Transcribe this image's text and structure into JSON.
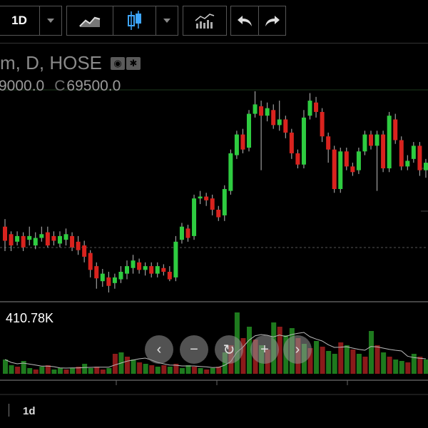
{
  "toolbar": {
    "interval": "1D",
    "icons": {
      "interval_menu": "chevron-down-icon",
      "compare": "line-chart-icon",
      "chart_type": "candlestick-icon",
      "chart_type_menu": "chevron-down-icon",
      "indicators": "indicators-icon",
      "undo": "undo-icon",
      "redo": "redo-icon"
    }
  },
  "legend": {
    "symbol_text": "m, D, HOSE",
    "ohlc_partial": "9000.0",
    "close_label": "C",
    "close_value": "69500.0",
    "icons": [
      "eye-icon",
      "settings-icon"
    ]
  },
  "volume": {
    "value": "410.78K"
  },
  "time_axis": {
    "interval_label": "1d"
  },
  "nav_buttons": [
    {
      "name": "scroll-left-button",
      "glyph": "‹"
    },
    {
      "name": "zoom-out-button",
      "glyph": "−"
    },
    {
      "name": "reset-button",
      "glyph": "↻"
    },
    {
      "name": "zoom-in-button",
      "glyph": "+"
    },
    {
      "name": "scroll-right-button",
      "glyph": "›"
    }
  ],
  "colors": {
    "up": "#2ecc40",
    "down": "#d9231e",
    "up_volume": "#1e7a1e",
    "down_volume": "#8b1a1a"
  },
  "chart_data": {
    "type": "candlestick",
    "candles": [
      [
        0,
        [
          330,
          345,
          322,
          356
        ]
      ],
      [
        1,
        [
          338,
          350,
          335,
          356
        ]
      ],
      [
        2,
        [
          346,
          340,
          335,
          350
        ]
      ],
      [
        3,
        [
          340,
          352,
          336,
          356
        ]
      ],
      [
        4,
        [
          344,
          340,
          330,
          350
        ]
      ],
      [
        5,
        [
          350,
          342,
          336,
          354
        ]
      ],
      [
        6,
        [
          342,
          338,
          330,
          346
        ]
      ],
      [
        7,
        [
          336,
          350,
          330,
          352
        ]
      ],
      [
        8,
        [
          340,
          345,
          335,
          350
        ]
      ],
      [
        9,
        [
          348,
          340,
          335,
          352
        ]
      ],
      [
        10,
        [
          344,
          338,
          332,
          350
        ]
      ],
      [
        11,
        [
          340,
          352,
          336,
          356
        ]
      ],
      [
        12,
        [
          346,
          355,
          340,
          360
        ]
      ],
      [
        13,
        [
          350,
          362,
          345,
          368
        ]
      ],
      [
        14,
        [
          358,
          376,
          355,
          384
        ]
      ],
      [
        15,
        [
          372,
          385,
          368,
          396
        ]
      ],
      [
        16,
        [
          388,
          380,
          375,
          394
        ]
      ],
      [
        17,
        [
          384,
          393,
          378,
          400
        ]
      ],
      [
        18,
        [
          390,
          384,
          380,
          396
        ]
      ],
      [
        19,
        [
          386,
          378,
          372,
          390
        ]
      ],
      [
        20,
        [
          380,
          372,
          366,
          386
        ]
      ],
      [
        21,
        [
          374,
          366,
          360,
          380
        ]
      ],
      [
        22,
        [
          368,
          376,
          364,
          380
        ]
      ],
      [
        23,
        [
          376,
          372,
          368,
          382
        ]
      ],
      [
        24,
        [
          372,
          380,
          368,
          384
        ]
      ],
      [
        25,
        [
          380,
          372,
          368,
          384
        ]
      ],
      [
        26,
        [
          374,
          378,
          370,
          382
        ]
      ],
      [
        27,
        [
          378,
          386,
          372,
          388
        ]
      ],
      [
        28,
        [
          384,
          346,
          340,
          388
        ]
      ],
      [
        29,
        [
          344,
          330,
          326,
          348
        ]
      ],
      [
        30,
        [
          332,
          342,
          328,
          346
        ]
      ],
      [
        31,
        [
          340,
          300,
          296,
          344
        ]
      ],
      [
        32,
        [
          300,
          298,
          292,
          306
        ]
      ],
      [
        33,
        [
          298,
          302,
          294,
          308
        ]
      ],
      [
        34,
        [
          300,
          312,
          296,
          318
        ]
      ],
      [
        35,
        [
          312,
          320,
          308,
          324
        ]
      ],
      [
        36,
        [
          318,
          290,
          286,
          324
        ]
      ],
      [
        37,
        [
          292,
          252,
          248,
          296
        ]
      ],
      [
        38,
        [
          254,
          232,
          228,
          258
        ]
      ],
      [
        39,
        [
          232,
          248,
          226,
          252
        ]
      ],
      [
        40,
        [
          246,
          210,
          206,
          250
        ]
      ],
      [
        41,
        [
          210,
          200,
          186,
          214
        ]
      ],
      [
        42,
        [
          202,
          212,
          196,
          270
        ]
      ],
      [
        43,
        [
          212,
          204,
          198,
          218
        ]
      ],
      [
        44,
        [
          206,
          222,
          200,
          226
        ]
      ],
      [
        45,
        [
          222,
          216,
          196,
          228
        ]
      ],
      [
        46,
        [
          216,
          230,
          212,
          236
        ]
      ],
      [
        47,
        [
          230,
          252,
          226,
          258
        ]
      ],
      [
        48,
        [
          252,
          264,
          248,
          268
        ]
      ],
      [
        49,
        [
          264,
          214,
          206,
          268
        ]
      ],
      [
        50,
        [
          212,
          196,
          188,
          216
        ]
      ],
      [
        51,
        [
          198,
          208,
          192,
          214
        ]
      ],
      [
        52,
        [
          208,
          234,
          204,
          240
        ]
      ],
      [
        53,
        [
          234,
          248,
          230,
          262
        ]
      ],
      [
        54,
        [
          248,
          290,
          244,
          294
        ]
      ],
      [
        55,
        [
          290,
          250,
          246,
          294
        ]
      ],
      [
        56,
        [
          250,
          266,
          246,
          270
        ]
      ],
      [
        57,
        [
          266,
          272,
          262,
          276
        ]
      ],
      [
        58,
        [
          270,
          250,
          246,
          274
        ]
      ],
      [
        59,
        [
          250,
          232,
          228,
          254
        ]
      ],
      [
        60,
        [
          232,
          244,
          228,
          248
        ]
      ],
      [
        61,
        [
          244,
          232,
          228,
          292
        ]
      ],
      [
        62,
        [
          232,
          268,
          228,
          272
        ]
      ],
      [
        63,
        [
          268,
          212,
          208,
          272
        ]
      ],
      [
        64,
        [
          216,
          238,
          210,
          242
        ]
      ],
      [
        65,
        [
          238,
          266,
          234,
          270
        ]
      ],
      [
        66,
        [
          266,
          260,
          254,
          270
        ]
      ],
      [
        67,
        [
          258,
          244,
          240,
          262
        ]
      ],
      [
        68,
        [
          244,
          270,
          240,
          276
        ]
      ],
      [
        69,
        [
          270,
          262,
          258,
          278
        ]
      ]
    ],
    "volumes": [
      [
        0,
        20,
        "up"
      ],
      [
        1,
        12,
        "up"
      ],
      [
        2,
        10,
        "down"
      ],
      [
        3,
        18,
        "up"
      ],
      [
        4,
        8,
        "up"
      ],
      [
        5,
        6,
        "down"
      ],
      [
        6,
        10,
        "up"
      ],
      [
        7,
        12,
        "down"
      ],
      [
        8,
        6,
        "up"
      ],
      [
        9,
        8,
        "up"
      ],
      [
        10,
        6,
        "down"
      ],
      [
        11,
        8,
        "up"
      ],
      [
        12,
        10,
        "down"
      ],
      [
        13,
        14,
        "up"
      ],
      [
        14,
        8,
        "up"
      ],
      [
        15,
        10,
        "down"
      ],
      [
        16,
        6,
        "down"
      ],
      [
        17,
        8,
        "up"
      ],
      [
        18,
        28,
        "down"
      ],
      [
        19,
        30,
        "up"
      ],
      [
        20,
        24,
        "down"
      ],
      [
        21,
        20,
        "up"
      ],
      [
        22,
        16,
        "down"
      ],
      [
        23,
        14,
        "up"
      ],
      [
        24,
        12,
        "down"
      ],
      [
        25,
        10,
        "up"
      ],
      [
        26,
        12,
        "down"
      ],
      [
        27,
        10,
        "up"
      ],
      [
        28,
        14,
        "down"
      ],
      [
        29,
        8,
        "up"
      ],
      [
        30,
        12,
        "up"
      ],
      [
        31,
        10,
        "down"
      ],
      [
        32,
        8,
        "up"
      ],
      [
        33,
        6,
        "down"
      ],
      [
        34,
        8,
        "up"
      ],
      [
        35,
        10,
        "down"
      ],
      [
        36,
        30,
        "up"
      ],
      [
        37,
        40,
        "down"
      ],
      [
        38,
        86,
        "up"
      ],
      [
        39,
        50,
        "down"
      ],
      [
        40,
        66,
        "up"
      ],
      [
        41,
        48,
        "down"
      ],
      [
        42,
        40,
        "up"
      ],
      [
        43,
        34,
        "down"
      ],
      [
        44,
        72,
        "up"
      ],
      [
        45,
        66,
        "down"
      ],
      [
        46,
        54,
        "up"
      ],
      [
        47,
        64,
        "up"
      ],
      [
        48,
        50,
        "down"
      ],
      [
        49,
        42,
        "up"
      ],
      [
        50,
        36,
        "down"
      ],
      [
        51,
        46,
        "up"
      ],
      [
        52,
        38,
        "down"
      ],
      [
        53,
        32,
        "up"
      ],
      [
        54,
        28,
        "up"
      ],
      [
        55,
        44,
        "down"
      ],
      [
        56,
        40,
        "up"
      ],
      [
        57,
        34,
        "down"
      ],
      [
        58,
        28,
        "up"
      ],
      [
        59,
        24,
        "down"
      ],
      [
        60,
        60,
        "up"
      ],
      [
        61,
        40,
        "down"
      ],
      [
        62,
        30,
        "up"
      ],
      [
        63,
        24,
        "down"
      ],
      [
        64,
        20,
        "up"
      ],
      [
        65,
        18,
        "up"
      ],
      [
        66,
        16,
        "down"
      ],
      [
        67,
        28,
        "up"
      ],
      [
        68,
        24,
        "down"
      ],
      [
        69,
        20,
        "up"
      ]
    ]
  }
}
